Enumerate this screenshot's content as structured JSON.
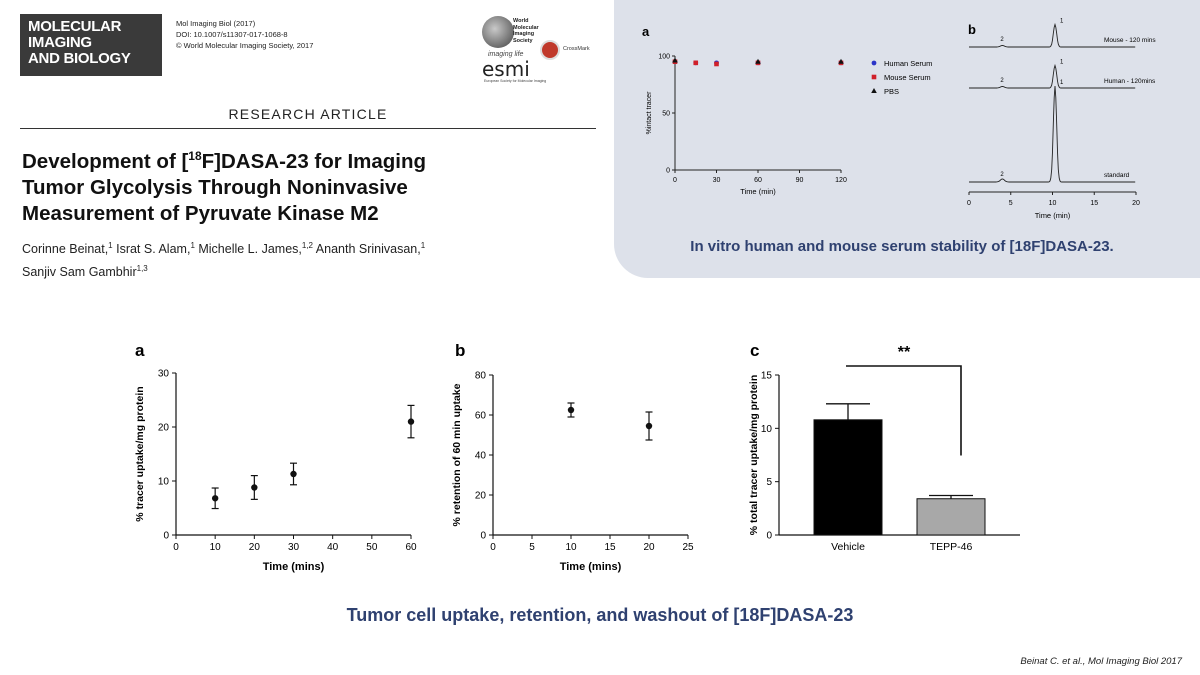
{
  "journal": {
    "logo_lines": [
      "MOLECULAR",
      "IMAGING",
      "AND BIOLOGY"
    ],
    "citation_line": "Mol Imaging Biol (2017)",
    "doi": "DOI: 10.1007/s11307-017-1068-8",
    "copyright": "© World Molecular Imaging Society, 2017",
    "wmis_lines": [
      "World",
      "Molecular",
      "Imaging",
      "Society"
    ],
    "esml_tagline": "imaging life",
    "esml_name": "esmi",
    "esml_sub": "European Society for Molecular Imaging",
    "crossmark_label": "CrossMark"
  },
  "article": {
    "type": "RESEARCH ARTICLE",
    "title_line1_pre": "Development of [",
    "title_line1_sup": "18",
    "title_line1_post": "F]DASA-23 for Imaging",
    "title_line2": "Tumor Glycolysis Through Noninvasive",
    "title_line3": "Measurement of Pyruvate Kinase M2",
    "authors_line1": [
      {
        "name": "Corinne Beinat,",
        "sup": "1"
      },
      {
        "name": " Israt S. Alam,",
        "sup": "1"
      },
      {
        "name": " Michelle L. James,",
        "sup": "1,2"
      },
      {
        "name": " Ananth Srinivasan,",
        "sup": "1"
      }
    ],
    "authors_line2": [
      {
        "name": "Sanjiv Sam Gambhir",
        "sup": "1,3"
      }
    ]
  },
  "panel_top": {
    "caption": "In vitro human and mouse serum stability of [18F]DASA-23."
  },
  "bottom": {
    "caption": "Tumor cell uptake, retention, and washout of [18F]DASA-23",
    "citation": "Beinat C. et al., Mol Imaging Biol 2017"
  },
  "chart_data": [
    {
      "panel": "a",
      "type": "scatter",
      "xlabel": "Time (min)",
      "ylabel": "%intact tracer",
      "xlim": [
        0,
        120
      ],
      "ylim": [
        0,
        100
      ],
      "xticks": [
        0,
        30,
        60,
        90,
        120
      ],
      "yticks": [
        0,
        50,
        100
      ],
      "legend_position": "right",
      "series": [
        {
          "name": "Human Serum",
          "marker": "circle",
          "color": "#2b35c8",
          "x": [
            0,
            15,
            30,
            60,
            120
          ],
          "y": [
            95,
            94,
            94,
            94,
            94
          ]
        },
        {
          "name": "Mouse Serum",
          "marker": "square",
          "color": "#d0202a",
          "x": [
            0,
            15,
            30,
            60,
            120
          ],
          "y": [
            95,
            94,
            93,
            94,
            94
          ]
        },
        {
          "name": "PBS",
          "marker": "triangle",
          "color": "#111111",
          "x": [
            0,
            60,
            120
          ],
          "y": [
            96,
            95,
            95
          ]
        }
      ]
    },
    {
      "panel": "b",
      "type": "line",
      "xlabel": "Time (min)",
      "xlim": [
        0,
        20
      ],
      "xticks": [
        0,
        5,
        10,
        15,
        20
      ],
      "trace_peak_time": 10.3,
      "minor_peak_time": 4,
      "series": [
        {
          "name": "Mouse - 120 mins",
          "peak1_label": "1",
          "peak2_label": "2",
          "peak1_rel": 0.33,
          "peak2_rel": 0.02
        },
        {
          "name": "Human - 120mins",
          "peak1_label": "1",
          "peak2_label": "2",
          "peak1_rel": 0.33,
          "peak2_rel": 0.02
        },
        {
          "name": "standard",
          "peak1_label": "1",
          "peak2_label": "2",
          "peak1_rel": 1.0,
          "peak2_rel": 0.03
        }
      ]
    },
    {
      "panel": "a",
      "type": "scatter",
      "xlabel": "Time (mins)",
      "ylabel": "% tracer uptake/mg protein",
      "xlim": [
        0,
        60
      ],
      "ylim": [
        0,
        30
      ],
      "xticks": [
        0,
        10,
        20,
        30,
        40,
        50,
        60
      ],
      "yticks": [
        0,
        10,
        20,
        30
      ],
      "x": [
        10,
        20,
        30,
        60
      ],
      "y": [
        6.8,
        8.8,
        11.3,
        21
      ],
      "error": [
        1.9,
        2.2,
        2.0,
        3.0
      ]
    },
    {
      "panel": "b",
      "type": "scatter",
      "xlabel": "Time (mins)",
      "ylabel": "% retention of 60 min uptake",
      "xlim": [
        0,
        25
      ],
      "ylim": [
        0,
        80
      ],
      "xticks": [
        0,
        5,
        10,
        15,
        20,
        25
      ],
      "yticks": [
        0,
        20,
        40,
        60,
        80
      ],
      "x": [
        10,
        20
      ],
      "y": [
        62.5,
        54.5
      ],
      "error": [
        3.5,
        7
      ]
    },
    {
      "panel": "c",
      "type": "bar",
      "ylabel": "% total tracer uptake/mg protein",
      "categories": [
        "Vehicle",
        "TEPP-46"
      ],
      "values": [
        10.8,
        3.4
      ],
      "error": [
        1.5,
        0.3
      ],
      "colors": [
        "#000000",
        "#a8a8a8"
      ],
      "ylim": [
        0,
        15
      ],
      "yticks": [
        0,
        5,
        10,
        15
      ],
      "significance": "**"
    }
  ]
}
